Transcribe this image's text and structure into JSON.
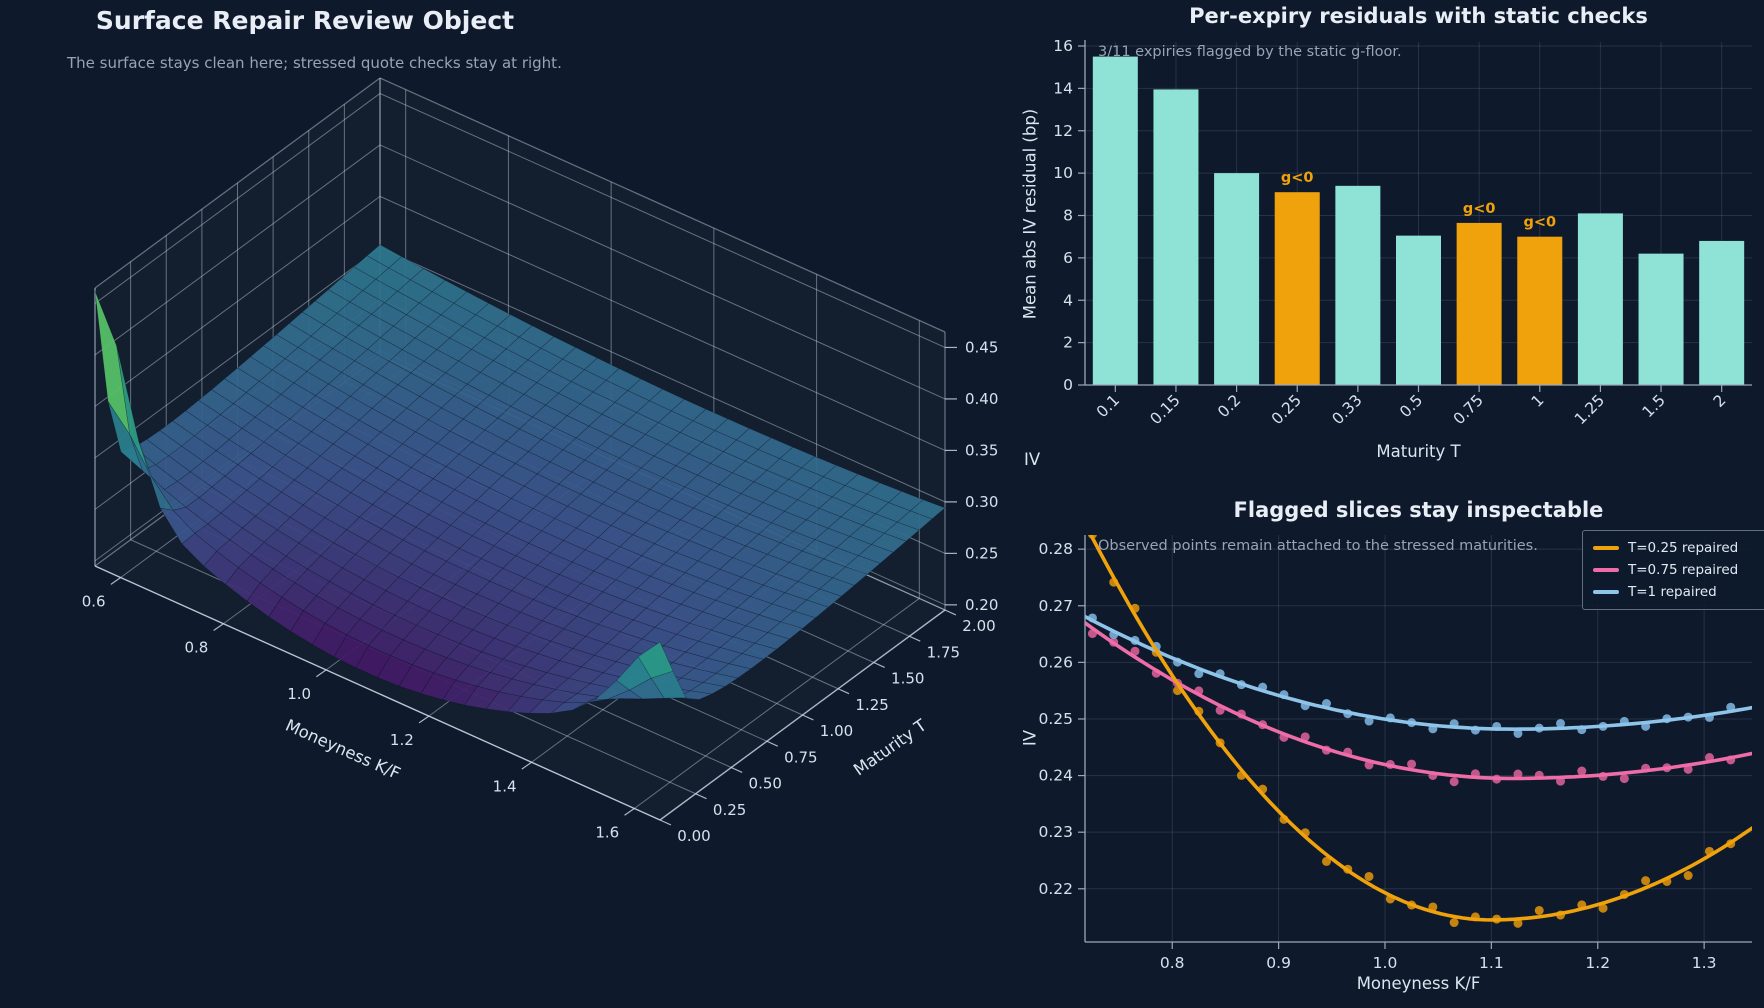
{
  "colors": {
    "background": "#0e1a2b",
    "teal_bar": "#8fe3d6",
    "orange": "#f0a20c",
    "orange_dot": "#d9900d",
    "pink": "#ee6ca7",
    "pink_dot": "#d55e96",
    "blue": "#8ec4ea",
    "blue_dot": "#7bb0da",
    "grid": "rgba(160,175,200,0.17)",
    "spine": "#9aa8bd",
    "tick_text": "#d7e0ec",
    "muted_text": "#98a4b6"
  },
  "surface_panel": {
    "title": "Surface Repair Review Object",
    "subtitle": "The surface stays clean here; stressed quote checks stay at right.",
    "xlabel": "Moneyness K/F",
    "ylabel": "Maturity T",
    "zlabel": "IV"
  },
  "bar_panel": {
    "title": "Per-expiry residuals with static checks",
    "annotation": "3/11 expiries flagged by the static g-floor.",
    "xlabel": "Maturity T",
    "ylabel": "Mean abs IV residual (bp)",
    "flag_label": "g<0"
  },
  "slice_panel": {
    "title": "Flagged slices stay inspectable",
    "annotation": "Observed points remain attached to the stressed maturities.",
    "xlabel": "Moneyness K/F",
    "ylabel": "IV"
  },
  "chart_data": [
    {
      "type": "surface3d",
      "title": "Surface Repair Review Object",
      "xlabel": "Moneyness K/F",
      "ylabel": "Maturity T",
      "zlabel": "IV",
      "x_range": [
        0.55,
        1.65
      ],
      "y_range": [
        0.0,
        2.0
      ],
      "z_range": [
        0.195,
        0.465
      ],
      "x_ticks": [
        0.6,
        0.8,
        1.0,
        1.2,
        1.4,
        1.6
      ],
      "y_ticks": [
        0.0,
        0.25,
        0.5,
        0.75,
        1.0,
        1.25,
        1.5,
        1.75,
        2.0
      ],
      "z_ticks": [
        0.2,
        0.25,
        0.3,
        0.35,
        0.4,
        0.45
      ],
      "colormap": "viridis",
      "model": {
        "base": [
          0.21,
          0.05,
          0.6
        ],
        "valley_center": [
          1.08,
          0.06
        ],
        "curvature": [
          0.095,
          0.3
        ],
        "left_spike": {
          "amp": 0.17,
          "k0": 0.55,
          "kw": 0.085,
          "tw": 0.085
        },
        "right_spike": {
          "amp": 0.055,
          "k0": 1.65,
          "kw": 0.1,
          "tw": 0.12
        },
        "clamp": [
          0.197,
          0.462
        ]
      },
      "grid": true
    },
    {
      "type": "bar",
      "title": "Per-expiry residuals with static checks",
      "categories": [
        "0.1",
        "0.15",
        "0.2",
        "0.25",
        "0.33",
        "0.5",
        "0.75",
        "1",
        "1.25",
        "1.5",
        "2"
      ],
      "values": [
        15.5,
        13.95,
        10.0,
        9.1,
        9.4,
        7.05,
        7.65,
        7.0,
        8.1,
        6.2,
        6.8
      ],
      "flagged_indices": [
        3,
        6,
        7
      ],
      "flagged_categories": [
        "0.25",
        "0.75",
        "1"
      ],
      "flag_label": "g<0",
      "annotation": "3/11 expiries flagged by the static g-floor.",
      "xlabel": "Maturity T",
      "ylabel": "Mean abs IV residual (bp)",
      "ylim": [
        0,
        16
      ],
      "y_ticks": [
        0,
        2,
        4,
        6,
        8,
        10,
        12,
        14,
        16
      ],
      "grid": true,
      "bar_color": "#8fe3d6",
      "flag_color": "#f0a20c"
    },
    {
      "type": "line+scatter",
      "title": "Flagged slices stay inspectable",
      "annotation": "Observed points remain attached to the stressed maturities.",
      "xlabel": "Moneyness K/F",
      "ylabel": "IV",
      "xlim": [
        0.718,
        1.345
      ],
      "ylim": [
        0.2106,
        0.2825
      ],
      "x_ticks": [
        0.8,
        0.9,
        1.0,
        1.1,
        1.2,
        1.3
      ],
      "y_ticks": [
        0.22,
        0.23,
        0.24,
        0.25,
        0.26,
        0.27,
        0.28
      ],
      "grid": true,
      "legend_position": "upper right",
      "series": [
        {
          "label": "T=0.25 repaired",
          "color": "#f0a20c",
          "dot_color": "#d9900d",
          "model": {
            "x_min": 1.1,
            "y_min": 0.2145,
            "c_left": 0.48,
            "c_right": 0.27
          },
          "jitter_scale": 0.0014,
          "jitter_offset": 0
        },
        {
          "label": "T=0.75 repaired",
          "color": "#ee6ca7",
          "dot_color": "#d55e96",
          "model": {
            "x_min": 1.12,
            "y_min": 0.2395,
            "c_left": 0.17,
            "c_right": 0.087
          },
          "jitter_scale": 0.0011,
          "jitter_offset": 11
        },
        {
          "label": "T=1 repaired",
          "color": "#8ec4ea",
          "dot_color": "#7bb0da",
          "model": {
            "x_min": 1.12,
            "y_min": 0.2482,
            "c_left": 0.123,
            "c_right": 0.075
          },
          "jitter_scale": 0.0009,
          "jitter_offset": 23
        }
      ],
      "scatter_x": {
        "start": 0.725,
        "step": 0.02,
        "count": 31
      },
      "jitter": [
        0.45,
        -0.6,
        0.85,
        -0.25,
        -0.9,
        0.4,
        0.05,
        -0.7,
        0.65,
        -0.35,
        0.5,
        -0.85,
        0.15,
        0.95,
        -0.45,
        -0.05,
        0.6,
        -0.75,
        0.3,
        0.1,
        -0.55,
        0.8,
        -0.2,
        0.5,
        -0.65,
        0.2,
        0.9,
        -0.4,
        -1.0,
        0.55,
        -0.15,
        0.7
      ]
    }
  ]
}
